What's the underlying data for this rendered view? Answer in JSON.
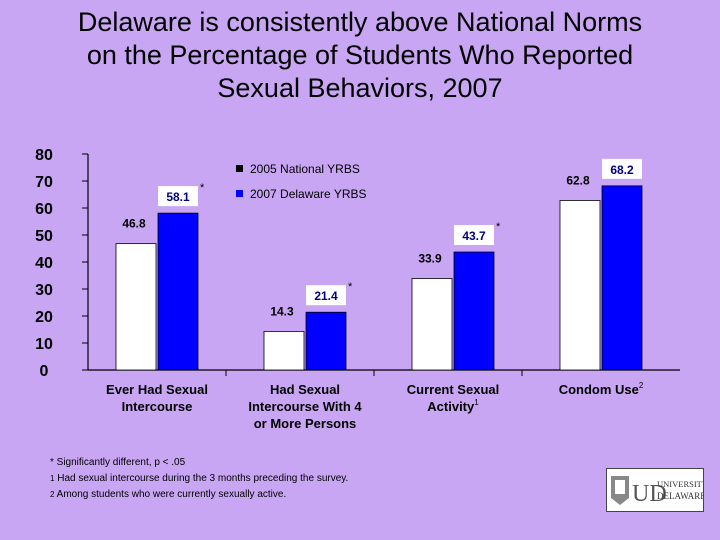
{
  "slide": {
    "title_lines": [
      "Delaware is consistently above National Norms",
      "on the Percentage of Students Who Reported",
      "Sexual Behaviors, 2007"
    ]
  },
  "chart_data": {
    "type": "bar",
    "categories": [
      [
        "Ever Had Sexual",
        "Intercourse"
      ],
      [
        "Had Sexual",
        "Intercourse With 4",
        "or More Persons"
      ],
      [
        "Current Sexual",
        "Activity"
      ],
      [
        "Condom Use"
      ]
    ],
    "category_superscripts": [
      "",
      "",
      "1",
      "2"
    ],
    "series": [
      {
        "name": "2005 National YRBS",
        "values": [
          46.8,
          14.3,
          33.9,
          62.8
        ],
        "color": "#ffffff"
      },
      {
        "name": "2007 Delaware YRBS",
        "values": [
          58.1,
          21.4,
          43.7,
          68.2
        ],
        "color": "#0000ff"
      }
    ],
    "significance_marks": [
      "*",
      "*",
      "*",
      ""
    ],
    "ylim": [
      0,
      80
    ],
    "yticks": [
      "0",
      "10",
      "20",
      "30",
      "40",
      "50",
      "60",
      "70",
      "80"
    ],
    "legend_position": "top-center",
    "grid": false
  },
  "footnotes": {
    "sig": "* Significantly different, p < .05",
    "note1_mark": "1",
    "note1": " Had sexual intercourse during the 3 months preceding the survey.",
    "note2_mark": "2",
    "note2": " Among students who were currently sexually active."
  },
  "logo": {
    "text_lines": [
      "UNIVERSITY OF",
      "DELAWARE"
    ],
    "initials": "UD"
  }
}
